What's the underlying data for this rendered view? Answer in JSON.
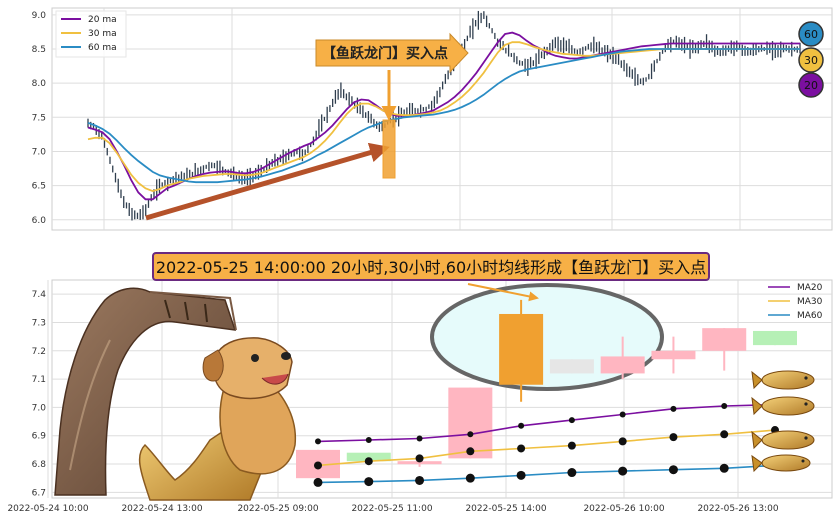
{
  "colors": {
    "ma20": "#7b0fa0",
    "ma30": "#f0c040",
    "ma60": "#2a8cc4",
    "candle_top": "#2f3e4e",
    "arrow": "#b5522a",
    "signal": "#f0a030",
    "banner_bg": "#f7b046",
    "banner_border": "#6a2a80",
    "ellipse": "#e6fbfb",
    "grid": "#dddddd"
  },
  "icons": [
    "arch-illustration",
    "dog-mermaid-illustration",
    "koi-fish-icon"
  ],
  "chart_data": [
    {
      "type": "line",
      "panel": "top",
      "ylim": [
        5.85,
        9.1
      ],
      "yticks": [
        "6.0",
        "6.5",
        "7.0",
        "7.5",
        "8.0",
        "8.5",
        "9.0"
      ],
      "grid": true,
      "legend_position": "top-left",
      "legend": [
        "20 ma",
        "30 ma",
        "60 ma"
      ],
      "x_count": 100,
      "series": [
        {
          "name": "20 ma",
          "color_key": "ma20",
          "values": [
            7.35,
            7.32,
            7.28,
            7.18,
            7.0,
            6.8,
            6.58,
            6.4,
            6.3,
            6.3,
            6.38,
            6.46,
            6.5,
            6.55,
            6.6,
            6.64,
            6.67,
            6.69,
            6.7,
            6.71,
            6.7,
            6.68,
            6.68,
            6.7,
            6.74,
            6.8,
            6.86,
            6.92,
            6.98,
            7.03,
            7.08,
            7.12,
            7.2,
            7.28,
            7.38,
            7.5,
            7.62,
            7.72,
            7.76,
            7.75,
            7.68,
            7.6,
            7.55,
            7.52,
            7.52,
            7.53,
            7.55,
            7.57,
            7.6,
            7.66,
            7.72,
            7.8,
            7.9,
            8.02,
            8.15,
            8.3,
            8.45,
            8.6,
            8.72,
            8.74,
            8.7,
            8.62,
            8.55,
            8.5,
            8.44,
            8.4,
            8.38,
            8.36,
            8.36,
            8.38,
            8.4,
            8.42,
            8.44,
            8.46,
            8.48,
            8.5,
            8.52,
            8.54,
            8.55,
            8.56,
            8.57,
            8.58,
            8.58,
            8.58,
            8.58,
            8.58,
            8.58,
            8.58,
            8.58,
            8.58,
            8.58,
            8.58,
            8.58,
            8.58,
            8.58,
            8.58,
            8.58,
            8.58,
            8.58,
            8.58
          ]
        },
        {
          "name": "30 ma",
          "color_key": "ma30",
          "values": [
            7.18,
            7.2,
            7.2,
            7.12,
            6.98,
            6.82,
            6.66,
            6.54,
            6.46,
            6.42,
            6.45,
            6.5,
            6.53,
            6.56,
            6.6,
            6.62,
            6.64,
            6.65,
            6.66,
            6.67,
            6.67,
            6.66,
            6.65,
            6.66,
            6.68,
            6.72,
            6.76,
            6.8,
            6.84,
            6.88,
            6.92,
            6.98,
            7.06,
            7.16,
            7.28,
            7.42,
            7.55,
            7.65,
            7.7,
            7.7,
            7.66,
            7.6,
            7.56,
            7.54,
            7.53,
            7.53,
            7.54,
            7.55,
            7.57,
            7.6,
            7.65,
            7.72,
            7.8,
            7.9,
            8.02,
            8.15,
            8.3,
            8.45,
            8.56,
            8.6,
            8.6,
            8.57,
            8.53,
            8.5,
            8.47,
            8.45,
            8.43,
            8.42,
            8.41,
            8.4,
            8.4,
            8.41,
            8.42,
            8.43,
            8.44,
            8.45,
            8.46,
            8.47,
            8.48,
            8.49,
            8.5,
            8.5,
            8.5,
            8.5,
            8.5,
            8.5,
            8.5,
            8.5,
            8.5,
            8.5,
            8.5,
            8.5,
            8.5,
            8.5,
            8.5,
            8.5,
            8.5,
            8.5,
            8.5,
            8.5
          ]
        },
        {
          "name": "60 ma",
          "color_key": "ma60",
          "values": [
            7.42,
            7.38,
            7.33,
            7.26,
            7.16,
            7.05,
            6.95,
            6.86,
            6.78,
            6.7,
            6.65,
            6.62,
            6.6,
            6.58,
            6.56,
            6.55,
            6.55,
            6.55,
            6.55,
            6.56,
            6.57,
            6.58,
            6.59,
            6.61,
            6.63,
            6.66,
            6.69,
            6.72,
            6.76,
            6.8,
            6.84,
            6.89,
            6.95,
            7.0,
            7.06,
            7.12,
            7.18,
            7.24,
            7.3,
            7.35,
            7.39,
            7.43,
            7.46,
            7.48,
            7.5,
            7.51,
            7.52,
            7.53,
            7.54,
            7.56,
            7.58,
            7.61,
            7.65,
            7.7,
            7.76,
            7.83,
            7.91,
            7.99,
            8.06,
            8.12,
            8.17,
            8.2,
            8.22,
            8.24,
            8.26,
            8.28,
            8.3,
            8.32,
            8.34,
            8.36,
            8.38,
            8.4,
            8.42,
            8.44,
            8.46,
            8.47,
            8.48,
            8.49,
            8.5,
            8.5,
            8.5,
            8.5,
            8.5,
            8.5,
            8.5,
            8.5,
            8.5,
            8.5,
            8.5,
            8.5,
            8.5,
            8.5,
            8.5,
            8.5,
            8.5,
            8.5,
            8.5,
            8.5,
            8.5,
            8.5
          ]
        }
      ],
      "price_path": [
        7.4,
        7.35,
        7.2,
        6.9,
        6.55,
        6.25,
        6.1,
        6.05,
        6.15,
        6.35,
        6.5,
        6.55,
        6.6,
        6.62,
        6.65,
        6.7,
        6.75,
        6.8,
        6.78,
        6.72,
        6.68,
        6.62,
        6.6,
        6.65,
        6.7,
        6.78,
        6.85,
        6.9,
        6.95,
        7.0,
        6.95,
        7.1,
        7.3,
        7.5,
        7.7,
        7.9,
        7.8,
        7.7,
        7.6,
        7.5,
        7.4,
        7.35,
        7.45,
        7.5,
        7.55,
        7.6,
        7.6,
        7.62,
        7.7,
        7.9,
        8.1,
        8.3,
        8.5,
        8.7,
        8.9,
        9.0,
        8.8,
        8.6,
        8.5,
        8.4,
        8.3,
        8.25,
        8.3,
        8.4,
        8.5,
        8.6,
        8.55,
        8.5,
        8.45,
        8.5,
        8.55,
        8.5,
        8.45,
        8.4,
        8.3,
        8.2,
        8.1,
        8.0,
        8.1,
        8.3,
        8.5,
        8.6,
        8.6,
        8.55,
        8.5,
        8.55,
        8.6,
        8.5,
        8.45,
        8.5,
        8.55,
        8.5,
        8.45,
        8.5,
        8.5,
        8.5,
        8.5,
        8.5,
        8.5,
        8.5
      ],
      "annotation": "【鱼跃龙门】买入点",
      "badges": [
        {
          "label": "60",
          "color_key": "ma60"
        },
        {
          "label": "30",
          "color_key": "ma30"
        },
        {
          "label": "20",
          "color_key": "ma20"
        }
      ]
    },
    {
      "type": "candlestick",
      "panel": "bottom",
      "title": "2022-05-25 14:00:00 20小时,30小时,60小时均线形成【鱼跃龙门】买入点",
      "ylim": [
        6.68,
        7.45
      ],
      "yticks": [
        "6.7",
        "6.8",
        "6.9",
        "7.0",
        "7.1",
        "7.2",
        "7.3",
        "7.4"
      ],
      "xticks": [
        "2022-05-24 10:00",
        "2022-05-24 13:00",
        "2022-05-25 09:00",
        "2022-05-25 11:00",
        "2022-05-25 14:00",
        "2022-05-26 10:00",
        "2022-05-26 13:00"
      ],
      "grid": true,
      "legend_position": "top-right",
      "legend": [
        "MA20",
        "MA30",
        "MA60"
      ],
      "candles": [
        {
          "x": 0,
          "open": 6.85,
          "close": 6.75,
          "high": 6.85,
          "low": 6.75,
          "color": "#ffb6c1"
        },
        {
          "x": 1,
          "open": 6.81,
          "close": 6.84,
          "high": 6.84,
          "low": 6.8,
          "color": "#b6f0b6"
        },
        {
          "x": 2,
          "open": 6.81,
          "close": 6.8,
          "high": 6.82,
          "low": 6.79,
          "color": "#ffb6c1"
        },
        {
          "x": 3,
          "open": 6.82,
          "close": 7.07,
          "high": 7.07,
          "low": 6.82,
          "color": "#ffb6c1"
        },
        {
          "x": 4,
          "open": 7.08,
          "close": 7.33,
          "high": 7.38,
          "low": 7.02,
          "color": "#f0a030"
        },
        {
          "x": 5,
          "open": 7.17,
          "close": 7.12,
          "high": 7.17,
          "low": 7.12,
          "color": "#e6e6e6"
        },
        {
          "x": 6,
          "open": 7.12,
          "close": 7.18,
          "high": 7.25,
          "low": 7.1,
          "color": "#ffb6c1"
        },
        {
          "x": 7,
          "open": 7.2,
          "close": 7.17,
          "high": 7.25,
          "low": 7.12,
          "color": "#ffb6c1"
        },
        {
          "x": 8,
          "open": 7.2,
          "close": 7.28,
          "high": 7.28,
          "low": 7.13,
          "color": "#ffb6c1"
        },
        {
          "x": 9,
          "open": 7.22,
          "close": 7.27,
          "high": 7.27,
          "low": 7.22,
          "color": "#b6f0b6"
        }
      ],
      "series": [
        {
          "name": "MA20",
          "color_key": "ma20",
          "values": [
            6.88,
            6.885,
            6.89,
            6.905,
            6.935,
            6.955,
            6.975,
            6.995,
            7.005,
            7.01
          ]
        },
        {
          "name": "MA30",
          "color_key": "ma30",
          "values": [
            6.795,
            6.81,
            6.82,
            6.845,
            6.855,
            6.865,
            6.88,
            6.895,
            6.905,
            6.92
          ]
        },
        {
          "name": "MA60",
          "color_key": "ma60",
          "values": [
            6.735,
            6.738,
            6.742,
            6.75,
            6.76,
            6.77,
            6.775,
            6.78,
            6.785,
            6.795
          ]
        }
      ]
    }
  ]
}
